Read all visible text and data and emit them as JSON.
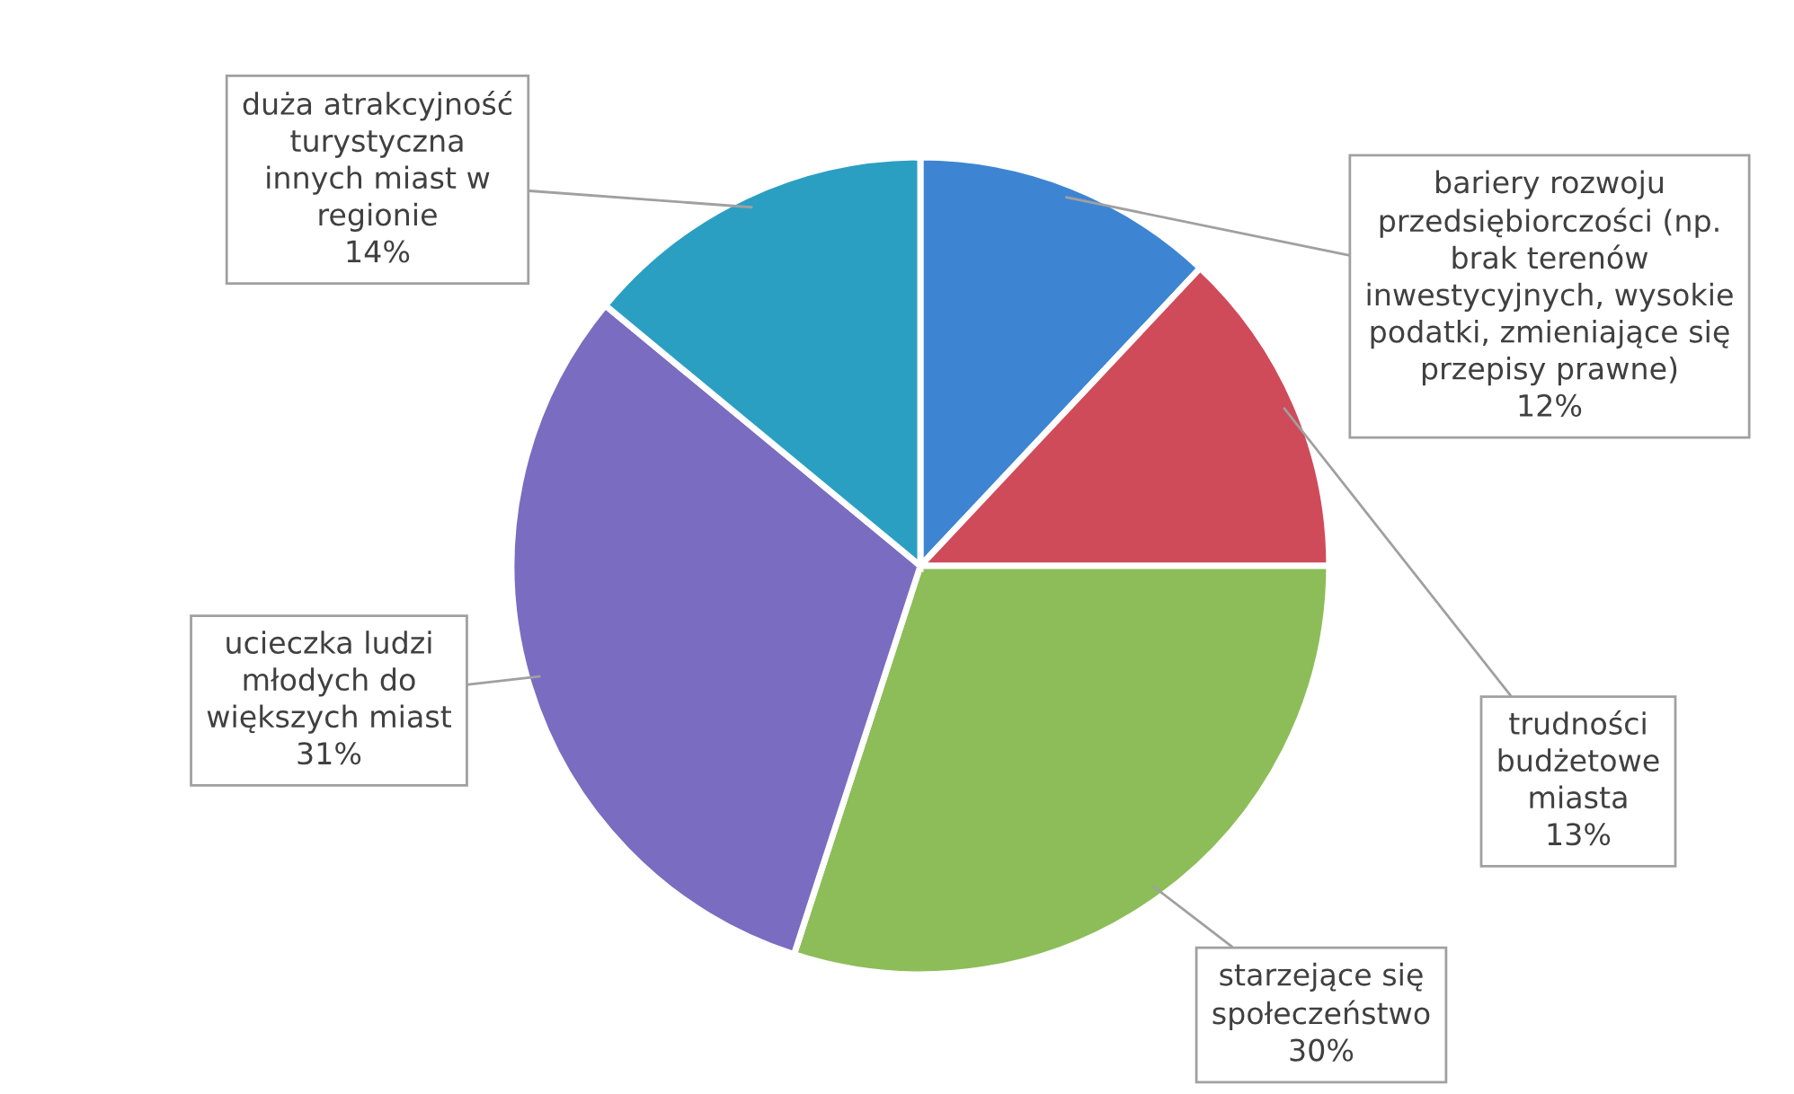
{
  "chart_data": {
    "type": "pie",
    "categories": [
      "bariery rozwoju\nprzedsiębiorczości (np.\nbrak terenów\ninwestycyjnych, wysokie\npodatki, zmieniające się\nprzepisy prawne)",
      "trudności\nbudżetowe\nmiasta",
      "starzejące się\nspołeczeństwo",
      "ucieczka ludzi\nmłodych do\nwiększych miast",
      "duża atrakcyjność\nturystyczna\ninnych miast w\nregionie"
    ],
    "values": [
      12,
      13,
      30,
      31,
      14
    ],
    "colors": [
      "#3d85d2",
      "#cf4b5a",
      "#8dbd58",
      "#7a6cc0",
      "#2b9fc2"
    ],
    "value_labels": [
      "12%",
      "13%",
      "30%",
      "31%",
      "14%"
    ]
  }
}
